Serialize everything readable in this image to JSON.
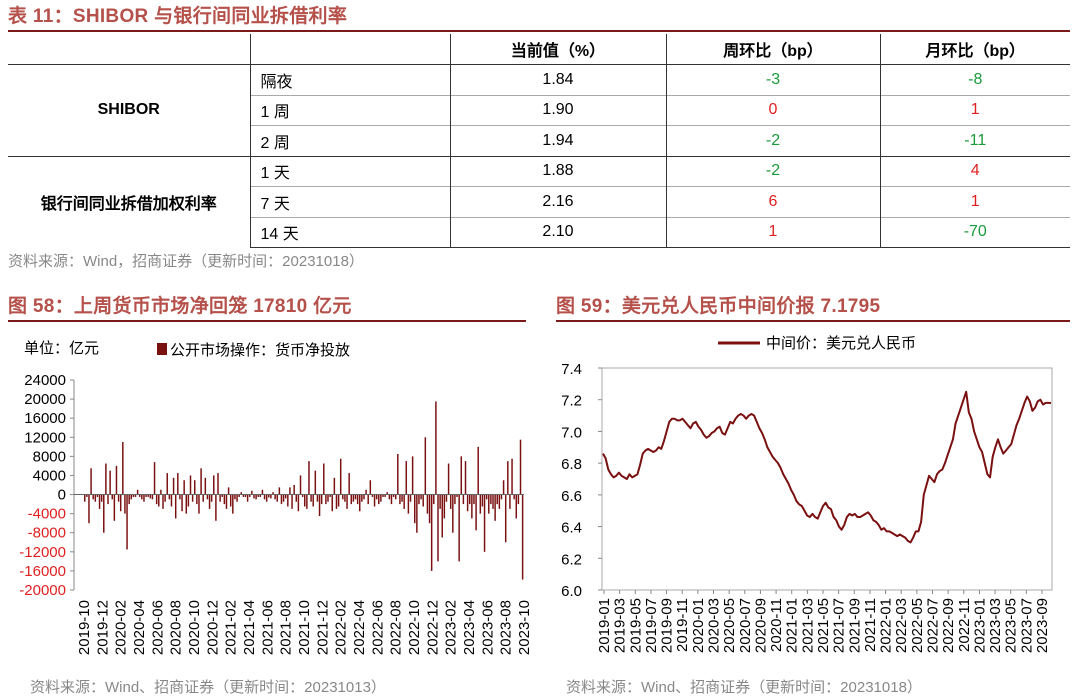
{
  "table": {
    "title": "表 11：SHIBOR 与银行间同业拆借利率",
    "headers": [
      "",
      "",
      "当前值（%）",
      "周环比（bp）",
      "月环比（bp）"
    ],
    "groups": [
      {
        "name": "SHIBOR",
        "rows": [
          {
            "term": "隔夜",
            "value": "1.84",
            "wow": "-3",
            "mom": "-8"
          },
          {
            "term": "1 周",
            "value": "1.90",
            "wow": "0",
            "mom": "1"
          },
          {
            "term": "2 周",
            "value": "1.94",
            "wow": "-2",
            "mom": "-11"
          }
        ]
      },
      {
        "name": "银行间同业拆借加权利率",
        "rows": [
          {
            "term": "1 天",
            "value": "1.88",
            "wow": "-2",
            "mom": "4"
          },
          {
            "term": "7 天",
            "value": "2.16",
            "wow": "6",
            "mom": "1"
          },
          {
            "term": "14 天",
            "value": "2.10",
            "wow": "1",
            "mom": "-70"
          }
        ]
      }
    ],
    "source": "资料来源：Wind，招商证券（更新时间：20231018）",
    "colors": {
      "negative": "#1a9a3a",
      "positive": "#e02020"
    }
  },
  "chart_data": [
    {
      "type": "bar",
      "title": "图 58：上周货币市场净回笼 17810 亿元",
      "unit_label": "单位：亿元",
      "legend": "公开市场操作：货币净投放",
      "legend_position": "top",
      "color": "#7a1010",
      "ylim": [
        -20000,
        24000
      ],
      "y_ticks": [
        24000,
        20000,
        16000,
        12000,
        8000,
        4000,
        0,
        -4000,
        -8000,
        -12000,
        -16000,
        -20000
      ],
      "y_tick_labels": [
        "24000",
        "20000",
        "16000",
        "12000",
        "8000",
        "4000",
        "0",
        "-4000",
        "-8000",
        "-12000",
        "-16000",
        "-20000"
      ],
      "negative_tick_color": "#e02020",
      "x_tick_labels": [
        "2019-10",
        "2019-12",
        "2020-02",
        "2020-04",
        "2020-06",
        "2020-08",
        "2020-10",
        "2020-12",
        "2021-02",
        "2021-04",
        "2021-06",
        "2021-08",
        "2021-10",
        "2021-12",
        "2022-02",
        "2022-04",
        "2022-06",
        "2022-08",
        "2022-10",
        "2022-12",
        "2023-02",
        "2023-04",
        "2023-06",
        "2023-08",
        "2023-10"
      ],
      "x_start": "2019-10",
      "x_end": "2023-10",
      "values": [
        -1500,
        -500,
        -6000,
        5500,
        -1000,
        -1500,
        -500,
        -3000,
        -1500,
        -8000,
        6500,
        -2000,
        5000,
        -1000,
        -5500,
        6000,
        -1500,
        -3500,
        11000,
        -4000,
        -11500,
        -2000,
        -1000,
        -500,
        -500,
        1000,
        -500,
        -1000,
        -1500,
        -500,
        -500,
        -800,
        -1000,
        6800,
        -2000,
        -2500,
        1000,
        -3000,
        -1500,
        4500,
        -1000,
        -2500,
        3500,
        -5000,
        4500,
        -1000,
        -3500,
        3000,
        -4000,
        -2500,
        4000,
        -1500,
        3000,
        -2000,
        -4000,
        5500,
        -1500,
        3500,
        -1000,
        -3000,
        -1500,
        4000,
        -5500,
        4500,
        -1500,
        -500,
        -2000,
        -3000,
        1500,
        -2500,
        -4000,
        -1000,
        -1500,
        -500,
        500,
        -500,
        -500,
        -1500,
        -500,
        800,
        -800,
        -1000,
        -500,
        -500,
        1000,
        -1000,
        -1500,
        -600,
        -800,
        500,
        -1000,
        -1500,
        1500,
        -2000,
        -1500,
        -800,
        -2500,
        1500,
        -3000,
        2000,
        -1500,
        -3500,
        4000,
        -500,
        -2500,
        -3000,
        7000,
        -1500,
        -2500,
        5000,
        -1500,
        -4500,
        -2000,
        6500,
        -2000,
        -1500,
        -500,
        -3500,
        3500,
        -3000,
        -2500,
        7500,
        -1000,
        -1500,
        -3000,
        4500,
        -2000,
        -1500,
        -1000,
        -2000,
        -3500,
        -1500,
        -1000,
        1000,
        -2000,
        3000,
        -500,
        -2500,
        -1000,
        -2000,
        -1500,
        -500,
        -500,
        500,
        -1000,
        -2000,
        -500,
        -1000,
        8500,
        -2000,
        -1500,
        -3000,
        7000,
        -4000,
        -1500,
        8000,
        -6000,
        -8000,
        -2000,
        -1000,
        -2500,
        12000,
        -4000,
        -6000,
        -16000,
        -2000,
        19500,
        -14000,
        -3000,
        -9000,
        -5000,
        -1500,
        6500,
        -3000,
        -8000,
        -2000,
        -500,
        -14000,
        8000,
        -2000,
        7000,
        -3500,
        -2000,
        -5000,
        -2000,
        -7500,
        10000,
        -4000,
        -2500,
        -12000,
        -1000,
        -4000,
        -2000,
        -3000,
        -5500,
        -2000,
        -3000,
        -1000,
        3000,
        -10000,
        7000,
        -3000,
        7500,
        -1000,
        -5000,
        -2000,
        11500,
        -17810
      ]
    },
    {
      "type": "line",
      "title": "图 59：美元兑人民币中间价报 7.1795",
      "legend": "中间价：美元兑人民币",
      "legend_position": "top",
      "color": "#7a1010",
      "ylim": [
        6.0,
        7.4
      ],
      "y_ticks": [
        6.0,
        6.2,
        6.4,
        6.6,
        6.8,
        7.0,
        7.2,
        7.4
      ],
      "y_tick_labels": [
        "6.0",
        "6.2",
        "6.4",
        "6.6",
        "6.8",
        "7.0",
        "7.2",
        "7.4"
      ],
      "x_tick_labels": [
        "2019-01",
        "2019-03",
        "2019-05",
        "2019-07",
        "2019-09",
        "2019-11",
        "2020-01",
        "2020-03",
        "2020-05",
        "2020-07",
        "2020-09",
        "2020-11",
        "2021-01",
        "2021-03",
        "2021-05",
        "2021-07",
        "2021-09",
        "2021-11",
        "2022-01",
        "2022-03",
        "2022-05",
        "2022-07",
        "2022-09",
        "2022-11",
        "2023-01",
        "2023-03",
        "2023-05",
        "2023-07",
        "2023-09"
      ],
      "x_start": "2019-01",
      "x_end": "2023-10",
      "values": [
        6.86,
        6.83,
        6.76,
        6.73,
        6.71,
        6.72,
        6.74,
        6.72,
        6.71,
        6.7,
        6.73,
        6.71,
        6.72,
        6.73,
        6.79,
        6.86,
        6.88,
        6.89,
        6.88,
        6.87,
        6.88,
        6.9,
        6.89,
        6.94,
        7.0,
        7.06,
        7.08,
        7.08,
        7.07,
        7.07,
        7.08,
        7.06,
        7.04,
        7.02,
        7.05,
        7.06,
        7.03,
        7.01,
        6.98,
        6.96,
        6.97,
        6.99,
        7.0,
        7.02,
        7.03,
        6.99,
        6.98,
        7.02,
        7.06,
        7.05,
        7.08,
        7.1,
        7.11,
        7.1,
        7.08,
        7.1,
        7.11,
        7.1,
        7.06,
        7.02,
        6.99,
        6.95,
        6.9,
        6.87,
        6.84,
        6.82,
        6.8,
        6.77,
        6.73,
        6.7,
        6.67,
        6.63,
        6.6,
        6.56,
        6.54,
        6.53,
        6.5,
        6.47,
        6.46,
        6.48,
        6.46,
        6.45,
        6.49,
        6.53,
        6.55,
        6.52,
        6.51,
        6.46,
        6.44,
        6.4,
        6.38,
        6.41,
        6.46,
        6.48,
        6.47,
        6.48,
        6.46,
        6.46,
        6.47,
        6.48,
        6.49,
        6.47,
        6.44,
        6.43,
        6.41,
        6.38,
        6.39,
        6.37,
        6.37,
        6.36,
        6.35,
        6.34,
        6.35,
        6.34,
        6.33,
        6.31,
        6.3,
        6.33,
        6.37,
        6.37,
        6.43,
        6.6,
        6.66,
        6.72,
        6.7,
        6.68,
        6.73,
        6.75,
        6.76,
        6.8,
        6.85,
        6.9,
        6.95,
        7.05,
        7.1,
        7.15,
        7.2,
        7.25,
        7.12,
        7.08,
        7.0,
        6.95,
        6.9,
        6.87,
        6.8,
        6.73,
        6.71,
        6.84,
        6.9,
        6.95,
        6.9,
        6.86,
        6.88,
        6.9,
        6.92,
        6.98,
        7.04,
        7.08,
        7.13,
        7.18,
        7.22,
        7.19,
        7.13,
        7.15,
        7.19,
        7.2,
        7.17,
        7.18,
        7.18,
        7.1795
      ]
    }
  ],
  "chart_source_left": "资料来源：Wind、招商证券（更新时间：20231013）",
  "chart_source_right": "资料来源：Wind、招商证券（更新时间：20231018）"
}
